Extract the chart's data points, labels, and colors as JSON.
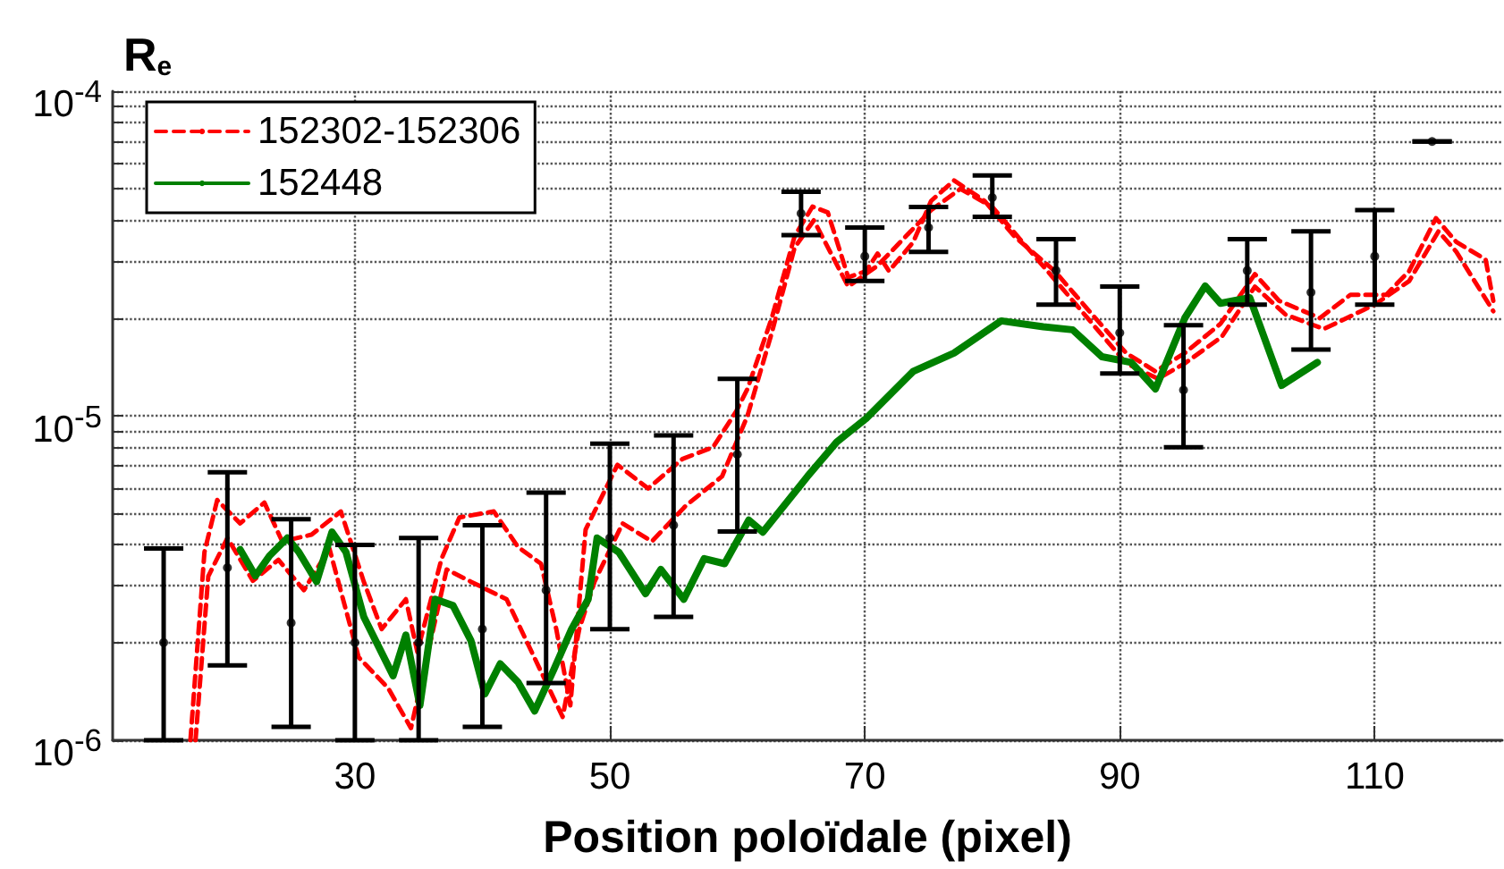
{
  "chart_data": {
    "type": "line",
    "xlabel": "Position poloïdale (pixel)",
    "ylabel": "R$_{e}$",
    "log": "y",
    "grid": true,
    "legend": "top left",
    "marker": "none",
    "xlim": [
      11,
      120
    ],
    "xticks": [
      30,
      50,
      70,
      90,
      110
    ],
    "ylim": [
      1e-06,
      0.0001
    ],
    "yticks": [
      {
        "value": 1e-06,
        "label": "10$^{-6}$"
      },
      {
        "value": 2e-06,
        "label": null
      },
      {
        "value": 3e-06,
        "label": null
      },
      {
        "value": 4e-06,
        "label": null
      },
      {
        "value": 5e-06,
        "label": null
      },
      {
        "value": 6e-06,
        "label": null
      },
      {
        "value": 7e-06,
        "label": null
      },
      {
        "value": 8e-06,
        "label": null
      },
      {
        "value": 9e-06,
        "label": null
      },
      {
        "value": 1e-05,
        "label": "10$^{-5}$"
      },
      {
        "value": 2e-05,
        "label": null
      },
      {
        "value": 3e-05,
        "label": null
      },
      {
        "value": 4e-05,
        "label": null
      },
      {
        "value": 5e-05,
        "label": null
      },
      {
        "value": 6e-05,
        "label": null
      },
      {
        "value": 7e-05,
        "label": null
      },
      {
        "value": 8e-05,
        "label": null
      },
      {
        "value": 9e-05,
        "label": null
      },
      {
        "value": 0.0001,
        "label": "10$^{-4}$"
      }
    ],
    "series": [
      {
        "name": "152302-152306",
        "color": "#ff0000",
        "line_style": "dashed",
        "x": [
          17.1,
          18.2,
          19.2,
          21,
          22.9,
          24.3,
          26.6,
          28.9,
          30.7,
          32.1,
          34,
          34.9,
          36.8,
          38.2,
          40.9,
          42.8,
          44.6,
          45.8,
          46.9,
          48.1,
          50.6,
          53,
          55.7,
          58.1,
          59.9,
          60.8,
          62.7,
          64.5,
          65.9,
          67.1,
          68.7,
          70.1,
          71,
          71.9,
          73.8,
          75.2,
          77,
          79.4,
          81.7,
          84.9,
          87.7,
          90.5,
          92.8,
          95.1,
          97.9,
          100.6,
          102.5,
          105.7,
          108.1,
          110.9,
          112.7,
          114.8,
          116.4,
          118.7,
          119.3
        ],
        "values": [
          1e-06,
          3.8e-06,
          5.5e-06,
          4.66e-06,
          5.4e-06,
          4.1e-06,
          4.3e-06,
          5.07e-06,
          3.08e-06,
          2.2e-06,
          2.72e-06,
          1.87e-06,
          3.63e-06,
          4.86e-06,
          5.07e-06,
          3.94e-06,
          3.5e-06,
          2.2e-06,
          1.28e-06,
          4.46e-06,
          7.06e-06,
          5.97e-06,
          7.36e-06,
          8e-06,
          1.03e-05,
          1.21e-05,
          2e-05,
          3.58e-05,
          4.41e-05,
          4.23e-05,
          2.67e-05,
          2.79e-05,
          3.16e-05,
          2.79e-05,
          3.43e-05,
          4.59e-05,
          5.31e-05,
          4.59e-05,
          3.58e-05,
          2.79e-05,
          2.08e-05,
          1.56e-05,
          1.37e-05,
          1.56e-05,
          1.92e-05,
          2.73e-05,
          2.26e-05,
          2e-05,
          2.36e-05,
          2.36e-05,
          2.79e-05,
          4.06e-05,
          3.43e-05,
          3.03e-05,
          2.26e-05
        ]
      },
      {
        "color": "#ff0000",
        "line_style": "dashed",
        "x": [
          17.5,
          18.5,
          20,
          22,
          24,
          26,
          28,
          30.3,
          32.6,
          34.4,
          37.2,
          39.1,
          41.9,
          45,
          46.3,
          47.6,
          48.8,
          51,
          53.3,
          56,
          58.8,
          60.8,
          62.7,
          64.5,
          66,
          68.7,
          71,
          75.2,
          77.5,
          80,
          85,
          90.5,
          93,
          95.1,
          98,
          100.6,
          103,
          106,
          110,
          112.7,
          115,
          116.4,
          119.3
        ],
        "values": [
          1e-06,
          3.2e-06,
          4.2e-06,
          3.1e-06,
          3.6e-06,
          2.9e-06,
          3.9e-06,
          1.8e-06,
          1.45e-06,
          1.09e-06,
          3.36e-06,
          3.08e-06,
          2.72e-06,
          1.51e-06,
          1.18e-06,
          2.2e-06,
          3.08e-06,
          4.66e-06,
          4.1e-06,
          5.3e-06,
          6.5e-06,
          1e-05,
          1.8e-05,
          3.3e-05,
          4e-05,
          2.5e-05,
          2.9e-05,
          4.3e-05,
          5e-05,
          4.4e-05,
          2.6e-05,
          1.45e-05,
          1.3e-05,
          1.45e-05,
          1.75e-05,
          2.5e-05,
          2.05e-05,
          1.85e-05,
          2.2e-05,
          2.6e-05,
          3.7e-05,
          3.2e-05,
          2.1e-05
        ]
      },
      {
        "name": "152448",
        "color": "#008000",
        "line_style": "solid",
        "x": [
          21,
          22.2,
          23.3,
          24.7,
          25.6,
          27,
          28.2,
          29.3,
          30.7,
          33,
          34,
          35.1,
          36.3,
          37.7,
          39.1,
          40.2,
          41.4,
          42.8,
          44.1,
          45.6,
          47,
          48.3,
          49,
          50.7,
          52.8,
          54,
          55.8,
          57.4,
          59,
          60.9,
          62,
          65.5,
          67.8,
          70.1,
          73.8,
          77,
          80.7,
          84,
          86.3,
          88.6,
          90.9,
          92.8,
          95.1,
          96.7,
          97.9,
          100.2,
          102.7,
          105.5
        ],
        "values": [
          3.87e-06,
          3.21e-06,
          3.7e-06,
          4.2e-06,
          3.8e-06,
          3.08e-06,
          4.38e-06,
          3.8e-06,
          2.4e-06,
          1.58e-06,
          2.11e-06,
          1.28e-06,
          2.72e-06,
          2.6e-06,
          2.03e-06,
          1.39e-06,
          1.72e-06,
          1.51e-06,
          1.23e-06,
          1.65e-06,
          2.2e-06,
          2.72e-06,
          4.2e-06,
          3.8e-06,
          2.83e-06,
          3.36e-06,
          2.72e-06,
          3.63e-06,
          3.5e-06,
          4.77e-06,
          4.38e-06,
          6.5e-06,
          8.3e-06,
          9.8e-06,
          1.37e-05,
          1.56e-05,
          1.96e-05,
          1.88e-05,
          1.84e-05,
          1.52e-05,
          1.46e-05,
          1.21e-05,
          2e-05,
          2.51e-05,
          2.22e-05,
          2.31e-05,
          1.24e-05,
          1.46e-05
        ]
      },
      {
        "type": "scatter",
        "marker": "circle",
        "color": "#000000",
        "x": [
          15,
          20,
          25,
          30,
          35,
          40,
          45,
          50,
          55,
          60,
          65,
          70,
          75,
          80,
          85,
          90,
          95,
          100,
          105,
          110,
          114.5
        ],
        "values": [
          2e-06,
          3.4e-06,
          2.3e-06,
          2e-06,
          2e-06,
          2.2e-06,
          2.9e-06,
          4.2e-06,
          4.6e-06,
          7.6e-06,
          4.2e-05,
          3.1e-05,
          3.8e-05,
          4.7e-05,
          2.8e-05,
          1.8e-05,
          1.2e-05,
          2.8e-05,
          2.4e-05,
          3.1e-05,
          7e-05
        ],
        "errors": [
          [
            1e-06,
            3.9e-06
          ],
          [
            1.7e-06,
            6.7e-06
          ],
          [
            1.1e-06,
            4.8e-06
          ],
          [
            1e-06,
            4e-06
          ],
          [
            1e-06,
            4.2e-06
          ],
          [
            1.1e-06,
            4.6e-06
          ],
          [
            1.5e-06,
            5.8e-06
          ],
          [
            2.2e-06,
            8.2e-06
          ],
          [
            2.4e-06,
            8.7e-06
          ],
          [
            4.4e-06,
            1.3e-05
          ],
          [
            3.6e-05,
            4.9e-05
          ],
          [
            2.6e-05,
            3.8e-05
          ],
          [
            3.2e-05,
            4.4e-05
          ],
          [
            4.1e-05,
            5.5e-05
          ],
          [
            2.2e-05,
            3.5e-05
          ],
          [
            1.35e-05,
            2.5e-05
          ],
          [
            8e-06,
            1.9e-05
          ],
          [
            2.2e-05,
            3.5e-05
          ],
          [
            1.6e-05,
            3.7e-05
          ],
          [
            2.2e-05,
            4.3e-05
          ],
          [
            7e-05,
            7e-05
          ]
        ]
      }
    ]
  }
}
